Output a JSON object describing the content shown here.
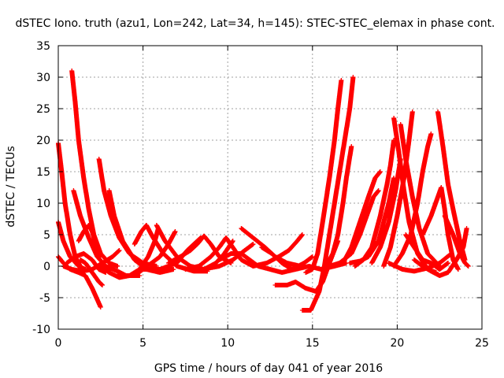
{
  "chart_data": {
    "type": "scatter",
    "title": "dSTEC Iono. truth (azu1, Lon=242, Lat=34, h=145): STEC-STEC_elemax in phase cont.",
    "xlabel": "GPS time / hours of day 041 of year 2016",
    "ylabel": "dSTEC  / TECUs",
    "xlim": [
      0,
      25
    ],
    "ylim": [
      -10,
      35
    ],
    "xticks": [
      0,
      5,
      10,
      15,
      20,
      25
    ],
    "yticks": [
      -10,
      -5,
      0,
      5,
      10,
      15,
      20,
      25,
      30,
      35
    ],
    "grid": true,
    "marker": "plus",
    "color": "#ff0000",
    "tracks": [
      [
        [
          0.0,
          19.5
        ],
        [
          0.2,
          15
        ],
        [
          0.4,
          10
        ],
        [
          0.7,
          5
        ],
        [
          1.0,
          1.5
        ],
        [
          1.3,
          0
        ]
      ],
      [
        [
          0.0,
          7
        ],
        [
          0.3,
          4
        ],
        [
          0.7,
          1.5
        ],
        [
          1.2,
          0
        ],
        [
          1.6,
          -0.5
        ]
      ],
      [
        [
          0.0,
          1.5
        ],
        [
          0.3,
          0.5
        ],
        [
          0.7,
          -0.5
        ],
        [
          1.2,
          -1.0
        ],
        [
          1.6,
          -1.5
        ],
        [
          2.0,
          -3.5
        ],
        [
          2.5,
          -6.5
        ]
      ],
      [
        [
          0.3,
          0
        ],
        [
          0.8,
          -0.5
        ],
        [
          1.4,
          -0.8
        ],
        [
          2.0,
          -0.5
        ],
        [
          2.6,
          0.5
        ],
        [
          3.2,
          1.5
        ],
        [
          3.6,
          2.5
        ]
      ],
      [
        [
          0.8,
          31
        ],
        [
          1.0,
          26
        ],
        [
          1.2,
          20
        ],
        [
          1.5,
          14
        ],
        [
          1.8,
          9
        ],
        [
          2.1,
          5
        ],
        [
          2.5,
          2
        ],
        [
          3.0,
          0.5
        ],
        [
          3.5,
          0
        ]
      ],
      [
        [
          0.9,
          12
        ],
        [
          1.3,
          8
        ],
        [
          1.8,
          4.5
        ],
        [
          2.3,
          1.5
        ],
        [
          2.8,
          0
        ],
        [
          3.5,
          -0.8
        ],
        [
          4.0,
          -1.5
        ],
        [
          4.8,
          -1.5
        ]
      ],
      [
        [
          1.2,
          4
        ],
        [
          1.5,
          5.5
        ],
        [
          1.8,
          6.5
        ],
        [
          2.0,
          5.5
        ],
        [
          2.2,
          3.5
        ],
        [
          2.5,
          1.5
        ]
      ],
      [
        [
          1.3,
          1
        ],
        [
          1.6,
          0.5
        ],
        [
          2.0,
          -1
        ],
        [
          2.4,
          -2.5
        ],
        [
          2.6,
          -3
        ]
      ],
      [
        [
          2.4,
          17
        ],
        [
          2.7,
          12
        ],
        [
          3.1,
          8
        ],
        [
          3.6,
          4.5
        ],
        [
          4.2,
          2
        ],
        [
          5.0,
          0.5
        ],
        [
          5.8,
          0
        ]
      ],
      [
        [
          3.0,
          12
        ],
        [
          3.3,
          8
        ],
        [
          3.8,
          4
        ],
        [
          4.5,
          1
        ],
        [
          5.2,
          -0.5
        ],
        [
          6.0,
          -1.0
        ],
        [
          6.8,
          -0.5
        ]
      ],
      [
        [
          0.5,
          0.5
        ],
        [
          1.0,
          1.5
        ],
        [
          1.5,
          2
        ],
        [
          2.0,
          1
        ],
        [
          2.4,
          -0.5
        ],
        [
          2.8,
          -1
        ]
      ],
      [
        [
          2.5,
          0
        ],
        [
          3.0,
          -1
        ],
        [
          3.6,
          -1.8
        ],
        [
          4.2,
          -1.5
        ],
        [
          4.8,
          -0.5
        ],
        [
          5.3,
          1.5
        ],
        [
          5.7,
          4
        ],
        [
          5.9,
          6
        ]
      ],
      [
        [
          3.5,
          -1.5
        ],
        [
          4.5,
          -1.5
        ],
        [
          5.5,
          0.5
        ],
        [
          6.0,
          1.5
        ],
        [
          6.5,
          3.5
        ],
        [
          6.9,
          5.5
        ]
      ],
      [
        [
          4.5,
          3.5
        ],
        [
          4.9,
          5.5
        ],
        [
          5.2,
          6.5
        ],
        [
          5.6,
          4.5
        ],
        [
          6.2,
          2
        ],
        [
          7.0,
          0
        ],
        [
          8.0,
          -0.8
        ],
        [
          8.8,
          -0.8
        ]
      ],
      [
        [
          5.8,
          6.5
        ],
        [
          6.3,
          4
        ],
        [
          7.0,
          1.5
        ],
        [
          7.8,
          0
        ],
        [
          8.6,
          -0.5
        ],
        [
          9.3,
          0.5
        ],
        [
          9.8,
          2
        ],
        [
          10.3,
          4
        ]
      ],
      [
        [
          6.5,
          0.5
        ],
        [
          7.2,
          1.5
        ],
        [
          7.8,
          2.5
        ],
        [
          8.2,
          3.5
        ],
        [
          8.6,
          4.8
        ],
        [
          9.0,
          3.5
        ],
        [
          9.5,
          1.5
        ],
        [
          10.2,
          0.5
        ]
      ],
      [
        [
          5.0,
          -0.5
        ],
        [
          6.0,
          -0.5
        ],
        [
          7.0,
          0.5
        ],
        [
          7.6,
          2.5
        ],
        [
          8.0,
          3.5
        ],
        [
          8.4,
          4.5
        ]
      ],
      [
        [
          7.5,
          -0.5
        ],
        [
          8.3,
          0
        ],
        [
          9.0,
          1.5
        ],
        [
          9.5,
          3
        ],
        [
          9.9,
          4.5
        ],
        [
          10.3,
          3
        ],
        [
          10.8,
          1
        ],
        [
          11.5,
          0
        ]
      ],
      [
        [
          8.5,
          -0.5
        ],
        [
          9.5,
          0
        ],
        [
          10.3,
          1
        ],
        [
          11.0,
          2.5
        ],
        [
          11.5,
          3.5
        ]
      ],
      [
        [
          9.5,
          1
        ],
        [
          10.2,
          2
        ],
        [
          10.8,
          2
        ],
        [
          11.3,
          1
        ],
        [
          11.8,
          0
        ],
        [
          12.5,
          -0.5
        ]
      ],
      [
        [
          10.8,
          6
        ],
        [
          11.5,
          4.5
        ],
        [
          12.2,
          3
        ],
        [
          12.8,
          1.5
        ],
        [
          13.5,
          0.5
        ],
        [
          14.3,
          0
        ]
      ],
      [
        [
          11.5,
          0
        ],
        [
          12.3,
          0.5
        ],
        [
          13.0,
          1.5
        ],
        [
          13.6,
          2.5
        ],
        [
          14.1,
          4
        ],
        [
          14.4,
          5
        ]
      ],
      [
        [
          12.0,
          3
        ],
        [
          12.6,
          2
        ],
        [
          13.2,
          0.5
        ],
        [
          13.8,
          -0.5
        ],
        [
          14.5,
          0.5
        ],
        [
          15.0,
          1.5
        ]
      ],
      [
        [
          12.5,
          -0.5
        ],
        [
          13.2,
          -1
        ],
        [
          14.0,
          -0.5
        ],
        [
          14.8,
          0
        ],
        [
          15.5,
          -0.5
        ],
        [
          16.3,
          0
        ],
        [
          17.0,
          0.5
        ]
      ],
      [
        [
          12.8,
          -3
        ],
        [
          13.5,
          -3
        ],
        [
          14.0,
          -2.5
        ],
        [
          14.6,
          -3.5
        ],
        [
          15.2,
          -4
        ],
        [
          15.6,
          -2.5
        ],
        [
          16.0,
          0.5
        ],
        [
          16.5,
          4
        ]
      ],
      [
        [
          14.4,
          -7
        ],
        [
          14.9,
          -7
        ],
        [
          15.4,
          -4
        ],
        [
          15.7,
          0
        ],
        [
          16.0,
          5
        ],
        [
          16.3,
          10
        ],
        [
          16.6,
          15
        ],
        [
          16.9,
          20
        ],
        [
          17.2,
          25
        ],
        [
          17.4,
          30
        ]
      ],
      [
        [
          14.6,
          -1
        ],
        [
          15.0,
          -0.5
        ],
        [
          15.3,
          2
        ],
        [
          15.6,
          7
        ],
        [
          16.0,
          14
        ],
        [
          16.3,
          20
        ],
        [
          16.5,
          25
        ],
        [
          16.7,
          29.5
        ]
      ],
      [
        [
          15.8,
          0
        ],
        [
          16.2,
          2
        ],
        [
          16.5,
          5
        ],
        [
          16.8,
          10
        ],
        [
          17.0,
          14
        ],
        [
          17.3,
          19
        ]
      ],
      [
        [
          16.0,
          0
        ],
        [
          16.6,
          0.5
        ],
        [
          17.3,
          2
        ],
        [
          17.8,
          5
        ],
        [
          18.2,
          8
        ],
        [
          18.6,
          11
        ],
        [
          18.9,
          12
        ]
      ],
      [
        [
          17.5,
          0
        ],
        [
          18.0,
          1
        ],
        [
          18.5,
          3
        ],
        [
          19.0,
          8
        ],
        [
          19.4,
          13
        ],
        [
          19.6,
          16
        ],
        [
          19.8,
          20
        ]
      ],
      [
        [
          16.8,
          0.5
        ],
        [
          17.3,
          3
        ],
        [
          17.8,
          7
        ],
        [
          18.3,
          11
        ],
        [
          18.7,
          14
        ],
        [
          19.0,
          15
        ]
      ],
      [
        [
          17.2,
          0.5
        ],
        [
          17.8,
          0.8
        ],
        [
          18.3,
          1.5
        ],
        [
          18.9,
          4
        ],
        [
          19.5,
          10
        ],
        [
          19.8,
          14
        ]
      ],
      [
        [
          19.8,
          23.5
        ],
        [
          20.1,
          18
        ],
        [
          20.4,
          12
        ],
        [
          20.7,
          7
        ],
        [
          21.2,
          2
        ],
        [
          21.8,
          -0.5
        ],
        [
          22.3,
          -1
        ]
      ],
      [
        [
          20.2,
          22.5
        ],
        [
          20.5,
          17
        ],
        [
          20.9,
          11
        ],
        [
          21.3,
          6
        ],
        [
          21.8,
          2
        ],
        [
          22.5,
          0
        ]
      ],
      [
        [
          20.9,
          24.5
        ],
        [
          20.7,
          20
        ],
        [
          20.4,
          14
        ],
        [
          20.0,
          8
        ],
        [
          19.6,
          3
        ],
        [
          19.2,
          0
        ]
      ],
      [
        [
          20.2,
          17
        ],
        [
          19.9,
          12
        ],
        [
          19.5,
          7
        ],
        [
          19.0,
          3
        ],
        [
          18.5,
          0.5
        ]
      ],
      [
        [
          19.8,
          0
        ],
        [
          20.3,
          2
        ],
        [
          20.8,
          5
        ],
        [
          21.2,
          10
        ],
        [
          21.5,
          15
        ],
        [
          21.8,
          19
        ],
        [
          22.0,
          21
        ]
      ],
      [
        [
          22.4,
          24.5
        ],
        [
          22.7,
          19
        ],
        [
          23.0,
          13
        ],
        [
          23.3,
          9
        ],
        [
          23.7,
          4
        ],
        [
          24.0,
          1
        ]
      ],
      [
        [
          21.5,
          5
        ],
        [
          22.0,
          8
        ],
        [
          22.4,
          11
        ],
        [
          22.6,
          12.5
        ],
        [
          22.8,
          9
        ],
        [
          23.0,
          5
        ],
        [
          23.3,
          1
        ],
        [
          23.6,
          -0.5
        ]
      ],
      [
        [
          21.0,
          1
        ],
        [
          21.5,
          0
        ],
        [
          22.0,
          -0.8
        ],
        [
          22.5,
          -1.5
        ],
        [
          23.0,
          -1
        ],
        [
          23.5,
          1
        ],
        [
          23.9,
          3
        ],
        [
          24.1,
          6
        ]
      ],
      [
        [
          22.8,
          8
        ],
        [
          23.3,
          5
        ],
        [
          23.7,
          2
        ],
        [
          24.0,
          0.5
        ],
        [
          24.2,
          0
        ]
      ],
      [
        [
          20.5,
          5
        ],
        [
          21.0,
          3
        ],
        [
          21.5,
          1
        ],
        [
          22.0,
          0.5
        ],
        [
          22.5,
          -0.5
        ],
        [
          23.0,
          0.5
        ]
      ],
      [
        [
          19.5,
          0.5
        ],
        [
          20.3,
          -0.5
        ],
        [
          21.0,
          -0.8
        ],
        [
          21.8,
          -0.3
        ],
        [
          22.5,
          0.5
        ],
        [
          23.2,
          2
        ]
      ]
    ]
  }
}
